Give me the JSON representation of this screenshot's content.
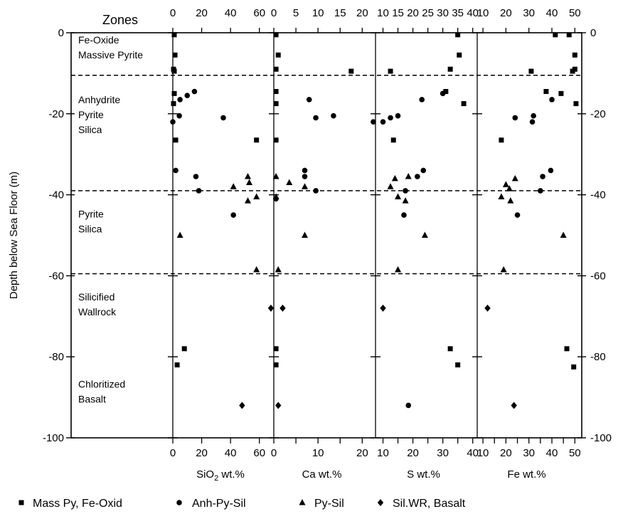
{
  "chart_data": {
    "type": "scatter",
    "zones_header": "Zones",
    "ylabel": "Depth below Sea Floor (m)",
    "ylim": [
      -100,
      0
    ],
    "y_ticks": [
      0,
      -20,
      -40,
      -60,
      -80,
      -100
    ],
    "y_tick_labels": [
      "0",
      "-20",
      "-40",
      "-60",
      "-80",
      "-100"
    ],
    "zone_boundaries": [
      -10.5,
      -39,
      -59.5
    ],
    "zones": [
      {
        "lines": [
          "Fe-Oxide",
          "Massive Pyrite"
        ],
        "depth": -3.5
      },
      {
        "lines": [
          "Anhydrite",
          "Pyrite",
          "Silica"
        ],
        "depth": -20
      },
      {
        "lines": [
          "Pyrite",
          "Silica"
        ],
        "depth": -46.5
      },
      {
        "lines": [
          "Silicified",
          "Wallrock"
        ],
        "depth": -67
      },
      {
        "lines": [
          "Chloritized",
          "Basalt"
        ],
        "depth": -88.5
      }
    ],
    "panels": [
      {
        "xlabel_main": "SiO",
        "xlabel_sub": "2",
        "xlabel_rest": " wt.%",
        "xlim": [
          0,
          70
        ],
        "ticks": [
          0,
          20,
          40,
          60
        ],
        "top_ticks": [
          0,
          20,
          40,
          60
        ],
        "bottom_labels": [
          "0",
          "20",
          "40",
          "60"
        ],
        "top_labels": [
          "0",
          "20",
          "40",
          "60"
        ],
        "series": [
          {
            "marker": "square",
            "points": [
              [
                1,
                -0.5
              ],
              [
                1.5,
                -5.5
              ],
              [
                0.5,
                -9
              ],
              [
                1,
                -9.5
              ],
              [
                0.5,
                -17.5
              ],
              [
                1,
                -15
              ],
              [
                2,
                -26.5
              ],
              [
                58,
                -26.5
              ],
              [
                8,
                -78
              ],
              [
                3,
                -82
              ]
            ]
          },
          {
            "marker": "circle",
            "points": [
              [
                15,
                -14.5
              ],
              [
                4.5,
                -20.5
              ],
              [
                0,
                -22
              ],
              [
                35,
                -21
              ],
              [
                5,
                -16.5
              ],
              [
                10,
                -15.5
              ],
              [
                2,
                -34
              ],
              [
                16,
                -35.5
              ],
              [
                18,
                -39
              ],
              [
                42,
                -45
              ]
            ]
          },
          {
            "marker": "triangle",
            "points": [
              [
                52,
                -35.5
              ],
              [
                53,
                -37
              ],
              [
                42,
                -38
              ],
              [
                52,
                -41.5
              ],
              [
                58,
                -40.5
              ],
              [
                5,
                -50
              ],
              [
                58,
                -58.5
              ]
            ]
          },
          {
            "marker": "diamond",
            "points": [
              [
                68,
                -68
              ],
              [
                48,
                -92
              ]
            ]
          }
        ]
      },
      {
        "xlabel_main": "Ca wt.%",
        "xlim": [
          0,
          23
        ],
        "ticks": [
          0,
          5,
          10,
          15,
          20
        ],
        "top_ticks": [
          0,
          5,
          10,
          15,
          20
        ],
        "bottom_labels": [
          "0",
          "10",
          "20"
        ],
        "bottom_label_values": [
          0,
          10,
          20
        ],
        "top_labels": [
          "0",
          "5",
          "10",
          "15",
          "20"
        ],
        "series": [
          {
            "marker": "square",
            "points": [
              [
                0.5,
                -0.5
              ],
              [
                1,
                -5.5
              ],
              [
                0.5,
                -9
              ],
              [
                0.5,
                -14.5
              ],
              [
                0.5,
                -17.5
              ],
              [
                0.5,
                -26.5
              ],
              [
                17.5,
                -9.5
              ],
              [
                0.5,
                -78
              ],
              [
                0.5,
                -82
              ]
            ]
          },
          {
            "marker": "circle",
            "points": [
              [
                8,
                -16.5
              ],
              [
                9.5,
                -21
              ],
              [
                13.5,
                -20.5
              ],
              [
                22.5,
                -22
              ],
              [
                7,
                -34
              ],
              [
                7,
                -35.5
              ],
              [
                9.5,
                -39
              ],
              [
                0.5,
                -41
              ]
            ]
          },
          {
            "marker": "triangle",
            "points": [
              [
                0.5,
                -35.5
              ],
              [
                3.5,
                -37
              ],
              [
                7,
                -38
              ],
              [
                0.5,
                -40.5
              ],
              [
                7,
                -50
              ],
              [
                1,
                -58.5
              ]
            ]
          },
          {
            "marker": "diamond",
            "points": [
              [
                2,
                -68
              ],
              [
                1,
                -92
              ]
            ]
          }
        ]
      },
      {
        "xlabel_main": "S wt.%",
        "xlim": [
          7.5,
          41.5
        ],
        "ticks": [
          10,
          15,
          20,
          25,
          30,
          35,
          40
        ],
        "top_ticks": [
          10,
          15,
          20,
          25,
          30,
          35,
          40
        ],
        "bottom_labels": [
          "10",
          "20",
          "30",
          "40"
        ],
        "bottom_label_values": [
          10,
          20,
          30,
          40
        ],
        "top_labels": [
          "10",
          "15",
          "20",
          "25",
          "30",
          "35",
          "40"
        ],
        "series": [
          {
            "marker": "square",
            "points": [
              [
                35,
                -0.5
              ],
              [
                35.5,
                -5.5
              ],
              [
                32.5,
                -9
              ],
              [
                12.5,
                -9.5
              ],
              [
                31,
                -14.5
              ],
              [
                37,
                -17.5
              ],
              [
                13.5,
                -26.5
              ],
              [
                32.5,
                -78
              ],
              [
                35,
                -82
              ]
            ]
          },
          {
            "marker": "circle",
            "points": [
              [
                10,
                -22
              ],
              [
                12.5,
                -21
              ],
              [
                15,
                -20.5
              ],
              [
                23,
                -16.5
              ],
              [
                30,
                -15
              ],
              [
                23.5,
                -34
              ],
              [
                21.5,
                -35.5
              ],
              [
                17.5,
                -39
              ],
              [
                17,
                -45
              ],
              [
                18.5,
                -92
              ]
            ]
          },
          {
            "marker": "triangle",
            "points": [
              [
                14,
                -36
              ],
              [
                18.5,
                -35.5
              ],
              [
                12.5,
                -38
              ],
              [
                15,
                -40.5
              ],
              [
                17.5,
                -41.5
              ],
              [
                24,
                -50
              ],
              [
                15,
                -58.5
              ]
            ]
          },
          {
            "marker": "diamond",
            "points": [
              [
                10,
                -68
              ]
            ]
          }
        ]
      },
      {
        "xlabel_main": "Fe wt.%",
        "xlim": [
          7.5,
          53
        ],
        "ticks": [
          10,
          15,
          20,
          25,
          30,
          35,
          40,
          45,
          50
        ],
        "top_ticks": [
          10,
          20,
          30,
          40,
          50
        ],
        "bottom_labels": [
          "10",
          "20",
          "30",
          "40",
          "50"
        ],
        "bottom_label_values": [
          10,
          20,
          30,
          40,
          50
        ],
        "top_labels": [
          "10",
          "20",
          "30",
          "40",
          "50"
        ],
        "series": [
          {
            "marker": "square",
            "points": [
              [
                41.5,
                -0.5
              ],
              [
                47.5,
                -0.5
              ],
              [
                50,
                -5.5
              ],
              [
                49,
                -9.5
              ],
              [
                50,
                -9
              ],
              [
                31,
                -9.5
              ],
              [
                37.5,
                -14.5
              ],
              [
                44,
                -15
              ],
              [
                50.5,
                -17.5
              ],
              [
                18,
                -26.5
              ],
              [
                46.5,
                -78
              ],
              [
                49.5,
                -82.5
              ]
            ]
          },
          {
            "marker": "circle",
            "points": [
              [
                24,
                -21
              ],
              [
                32,
                -20.5
              ],
              [
                31.5,
                -22
              ],
              [
                40,
                -16.5
              ],
              [
                39.5,
                -34
              ],
              [
                36,
                -35.5
              ],
              [
                35,
                -39
              ],
              [
                25,
                -45
              ]
            ]
          },
          {
            "marker": "triangle",
            "points": [
              [
                24,
                -36
              ],
              [
                20,
                -37.5
              ],
              [
                21.5,
                -38.5
              ],
              [
                18,
                -40.5
              ],
              [
                22,
                -41.5
              ],
              [
                45,
                -50
              ],
              [
                19,
                -58.5
              ]
            ]
          },
          {
            "marker": "diamond",
            "points": [
              [
                12,
                -68
              ],
              [
                23.5,
                -92
              ]
            ]
          }
        ]
      }
    ],
    "legend": [
      {
        "marker": "square",
        "label": "Mass Py, Fe-Oxid"
      },
      {
        "marker": "circle",
        "label": "Anh-Py-Sil"
      },
      {
        "marker": "triangle",
        "label": "Py-Sil"
      },
      {
        "marker": "diamond",
        "label": "Sil.WR, Basalt"
      }
    ]
  }
}
